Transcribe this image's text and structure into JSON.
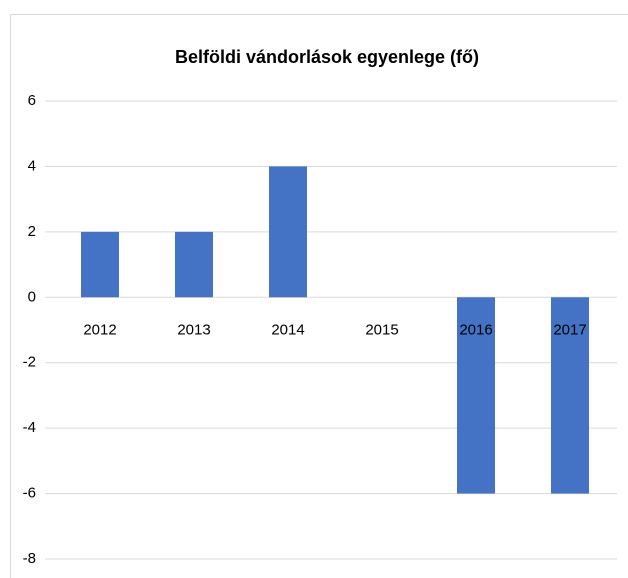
{
  "chart_data": {
    "type": "bar",
    "title": "Belföldi vándorlások egyenlege (fő)",
    "categories": [
      "2012",
      "2013",
      "2014",
      "2015",
      "2016",
      "2017"
    ],
    "values": [
      2,
      2,
      4,
      0,
      -6,
      -6
    ],
    "color": "#4472c4",
    "ylim": [
      -8,
      6
    ],
    "yticks": [
      -8,
      -6,
      -4,
      -2,
      0,
      2,
      4,
      6
    ],
    "grid": true
  }
}
